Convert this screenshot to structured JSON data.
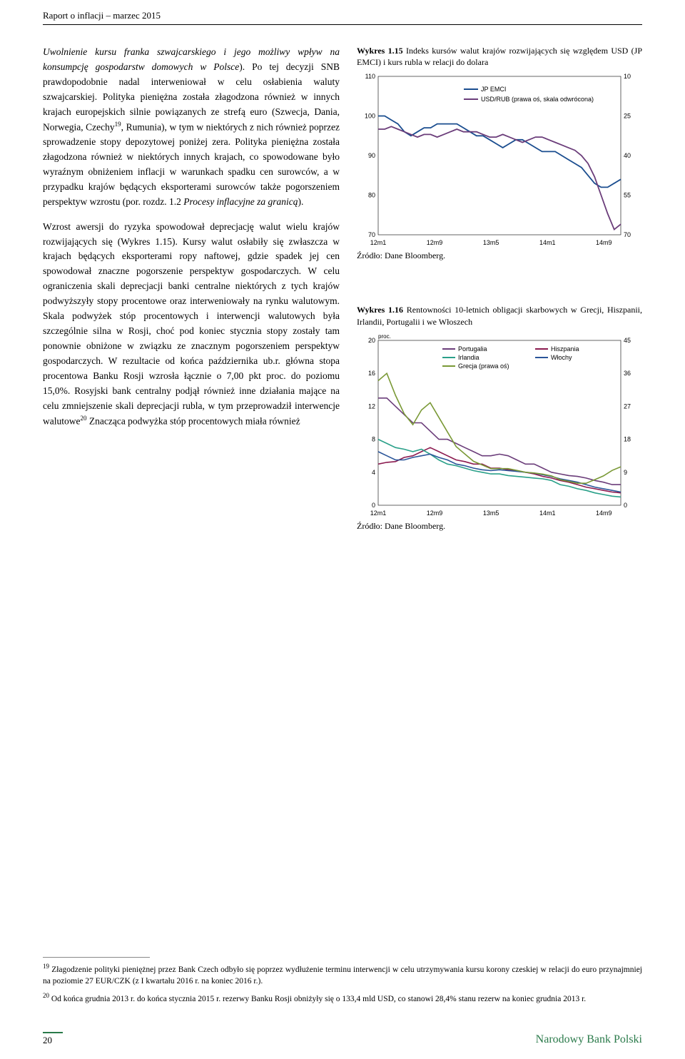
{
  "header": "Raport o inflacji – marzec 2015",
  "body": {
    "p1_title": "Uwolnienie kursu franka szwajcarskiego i jego możliwy wpływ na konsumpcję gospodarstw domowych w Polsce",
    "p1_rest": "). Po tej decyzji SNB prawdopodobnie nadal interweniował w celu osłabienia waluty szwajcarskiej. Polityka pieniężna została złagodzona również w innych krajach europejskich silnie powiązanych ze strefą euro (Szwecja, Dania, Norwegia, Czechy",
    "p1_sup": "19",
    "p1_rest2": ", Rumunia), w tym w niektórych z nich również poprzez sprowadzenie stopy depozytowej poniżej zera. Polityka pieniężna została złagodzona również w niektórych innych krajach, co spowodowane było wyraźnym obniżeniem inflacji w warunkach spadku cen surowców, a w przypadku krajów będących eksporterami surowców także pogorszeniem perspektyw wzrostu (por. rozdz. 1.2 ",
    "p1_ital": "Procesy inflacyjne za granicą",
    "p1_end": ").",
    "p2": "Wzrost awersji do ryzyka spowodował deprecjację walut wielu krajów rozwijających się (Wykres 1.15). Kursy walut osłabiły się zwłaszcza w krajach będących eksporterami ropy naftowej, gdzie spadek jej cen spowodował znaczne pogorszenie perspektyw gospodarczych. W celu ograniczenia skali deprecjacji banki centralne niektórych z tych krajów podwyższyły stopy procentowe oraz interweniowały na rynku walutowym. Skala podwyżek stóp procentowych i interwencji walutowych była szczególnie silna w Rosji, choć pod koniec stycznia stopy zostały tam ponownie obniżone w związku ze znacznym pogorszeniem perspektyw gospodarczych. W rezultacie od końca października ub.r. główna stopa procentowa Banku Rosji wzrosła łącznie o 7,00 pkt proc. do poziomu 15,0%. Rosyjski bank centralny podjął również inne działania mające na celu zmniejszenie skali deprecjacji rubla, w tym przeprowadził interwencje walutowe",
    "p2_sup": "20",
    "p2_rest": " Znacząca podwyżka stóp procentowych miała również"
  },
  "chart1": {
    "title_bold": "Wykres 1.15",
    "title_rest": " Indeks kursów walut krajów rozwijających się względem USD (JP EMCI) i kurs rubla w relacji do dolara",
    "source": "Źródło: Dane Bloomberg.",
    "legend": [
      "JP EMCI",
      "USD/RUB (prawa oś, skala odwrócona)"
    ],
    "legend_colors": [
      "#1a4d8f",
      "#6b3d7a"
    ],
    "left_ticks": [
      110,
      100,
      90,
      80,
      70
    ],
    "right_ticks": [
      10,
      25,
      40,
      55,
      70
    ],
    "x_labels": [
      "12m1",
      "12m9",
      "13m5",
      "14m1",
      "14m9"
    ],
    "series_jpemci": [
      100,
      100,
      99,
      98,
      96,
      95,
      96,
      97,
      97,
      98,
      98,
      98,
      98,
      97,
      96,
      95,
      95,
      94,
      93,
      92,
      93,
      94,
      94,
      93,
      92,
      91,
      91,
      91,
      90,
      89,
      88,
      87,
      85,
      83,
      82,
      82,
      83,
      84
    ],
    "series_usdrub": [
      30,
      30,
      29,
      30,
      31,
      32,
      33,
      32,
      32,
      33,
      32,
      31,
      30,
      31,
      31,
      31,
      32,
      33,
      33,
      32,
      33,
      34,
      35,
      34,
      33,
      33,
      34,
      35,
      36,
      37,
      38,
      40,
      43,
      48,
      55,
      62,
      68,
      66
    ],
    "background": "#ffffff",
    "axis_color": "#000000"
  },
  "chart2": {
    "title_bold": "Wykres 1.16",
    "title_rest": " Rentowności 10-letnich obligacji skarbowych w Grecji, Hiszpanii, Irlandii, Portugalii i we Włoszech",
    "source": "Źródło: Dane Bloomberg.",
    "y_label": "proc.",
    "legend": [
      "Portugalia",
      "Hiszpania",
      "Irlandia",
      "Włochy",
      "Grecja (prawa oś)"
    ],
    "legend_colors": [
      "#6b3d7a",
      "#8b1a4f",
      "#2aa089",
      "#2a5599",
      "#7a9936"
    ],
    "left_ticks": [
      20,
      16,
      12,
      8,
      4,
      0
    ],
    "right_ticks": [
      45,
      36,
      27,
      18,
      9,
      0
    ],
    "x_labels": [
      "12m1",
      "12m9",
      "13m5",
      "14m1",
      "14m9"
    ],
    "series": {
      "portugalia": [
        13,
        13,
        12,
        11,
        10,
        10,
        9,
        8,
        8,
        7.5,
        7,
        6.5,
        6,
        6,
        6.2,
        6,
        5.5,
        5,
        5,
        4.5,
        4,
        3.8,
        3.6,
        3.5,
        3.3,
        3,
        2.8,
        2.5,
        2.5
      ],
      "hiszpania": [
        5,
        5.2,
        5.3,
        5.8,
        6,
        6.5,
        7,
        6.5,
        6,
        5.5,
        5.3,
        5,
        5,
        4.5,
        4.5,
        4.3,
        4.2,
        4,
        3.8,
        3.5,
        3.3,
        3,
        2.8,
        2.5,
        2.2,
        2,
        1.8,
        1.6,
        1.5
      ],
      "irlandia": [
        8,
        7.5,
        7,
        6.8,
        6.5,
        6.8,
        6.2,
        5.5,
        5,
        4.8,
        4.5,
        4.2,
        4,
        3.8,
        3.8,
        3.6,
        3.5,
        3.4,
        3.3,
        3.2,
        3,
        2.5,
        2.3,
        2,
        1.8,
        1.5,
        1.3,
        1.1,
        1
      ],
      "wlochy": [
        6.5,
        6,
        5.5,
        5.5,
        5.8,
        6,
        6.2,
        5.8,
        5.5,
        5,
        4.8,
        4.5,
        4.3,
        4.2,
        4.3,
        4.2,
        4.1,
        4,
        3.9,
        3.7,
        3.5,
        3.2,
        3,
        2.8,
        2.5,
        2.2,
        2,
        1.8,
        1.6
      ],
      "grecja": [
        34,
        36,
        30,
        25,
        22,
        26,
        28,
        24,
        20,
        16,
        14,
        12,
        11,
        10,
        10,
        10,
        9.5,
        9,
        8.8,
        8.5,
        8,
        7,
        6.5,
        6,
        6,
        7,
        8,
        9.5,
        10.5
      ]
    }
  },
  "footnotes": {
    "f19": "19",
    "f19_text": " Złagodzenie polityki pieniężnej przez Bank Czech odbyło się poprzez wydłużenie terminu interwencji w celu utrzymywania kursu korony czeskiej w relacji do euro przynajmniej na poziomie 27 EUR/CZK (z I kwartału 2016 r. na koniec 2016 r.).",
    "f20": "20",
    "f20_text": " Od końca grudnia 2013 r. do końca stycznia 2015 r. rezerwy Banku Rosji obniżyły się o 133,4 mld USD, co stanowi 28,4% stanu rezerw na koniec grudnia 2013 r."
  },
  "footer": {
    "page": "20",
    "publisher": "Narodowy Bank Polski"
  }
}
